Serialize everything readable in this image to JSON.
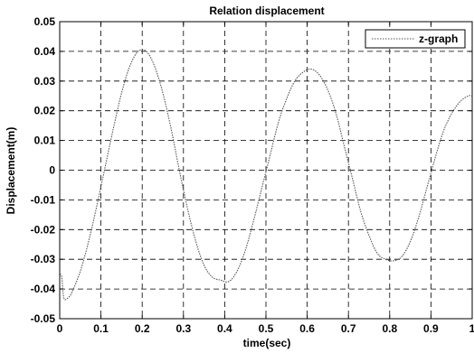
{
  "chart_data": {
    "type": "line",
    "title": "Relation displacement",
    "xlabel": "time(sec)",
    "ylabel": "Displacement(m)",
    "xlim": [
      0,
      1
    ],
    "ylim": [
      -0.05,
      0.05
    ],
    "xticks": [
      0,
      0.1,
      0.2,
      0.3,
      0.4,
      0.5,
      0.6,
      0.7,
      0.8,
      0.9,
      1
    ],
    "xtick_labels": [
      "0",
      "0.1",
      "0.2",
      "0.3",
      "0.4",
      "0.5",
      "0.6",
      "0.7",
      "0.8",
      "0.9",
      "1"
    ],
    "yticks": [
      -0.05,
      -0.04,
      -0.03,
      -0.02,
      -0.01,
      0,
      0.01,
      0.02,
      0.03,
      0.04,
      0.05
    ],
    "ytick_labels": [
      "-0.05",
      "-0.04",
      "-0.03",
      "-0.02",
      "-0.01",
      "0",
      "0.01",
      "0.02",
      "0.03",
      "0.04",
      "0.05"
    ],
    "grid": true,
    "legend_position": "top-right",
    "series": [
      {
        "name": "z-graph",
        "color": "#555555",
        "x": [
          0.0,
          0.005,
          0.01,
          0.02,
          0.03,
          0.05,
          0.07,
          0.09,
          0.11,
          0.13,
          0.15,
          0.17,
          0.19,
          0.21,
          0.23,
          0.25,
          0.27,
          0.29,
          0.31,
          0.33,
          0.35,
          0.37,
          0.39,
          0.41,
          0.43,
          0.45,
          0.47,
          0.49,
          0.51,
          0.53,
          0.55,
          0.57,
          0.59,
          0.61,
          0.63,
          0.65,
          0.67,
          0.69,
          0.71,
          0.73,
          0.75,
          0.77,
          0.79,
          0.81,
          0.83,
          0.85,
          0.87,
          0.89,
          0.91,
          0.93,
          0.95,
          0.97,
          0.99,
          1.0
        ],
        "y": [
          -0.035,
          -0.036,
          -0.043,
          -0.043,
          -0.041,
          -0.034,
          -0.024,
          -0.012,
          0.001,
          0.014,
          0.026,
          0.035,
          0.04,
          0.04,
          0.035,
          0.026,
          0.014,
          0.0,
          -0.013,
          -0.024,
          -0.032,
          -0.036,
          -0.037,
          -0.0375,
          -0.034,
          -0.027,
          -0.017,
          -0.006,
          0.005,
          0.016,
          0.024,
          0.03,
          0.033,
          0.034,
          0.032,
          0.027,
          0.019,
          0.008,
          -0.003,
          -0.014,
          -0.022,
          -0.028,
          -0.03,
          -0.0305,
          -0.029,
          -0.024,
          -0.016,
          -0.006,
          0.004,
          0.013,
          0.019,
          0.023,
          0.025,
          0.025
        ]
      }
    ]
  }
}
